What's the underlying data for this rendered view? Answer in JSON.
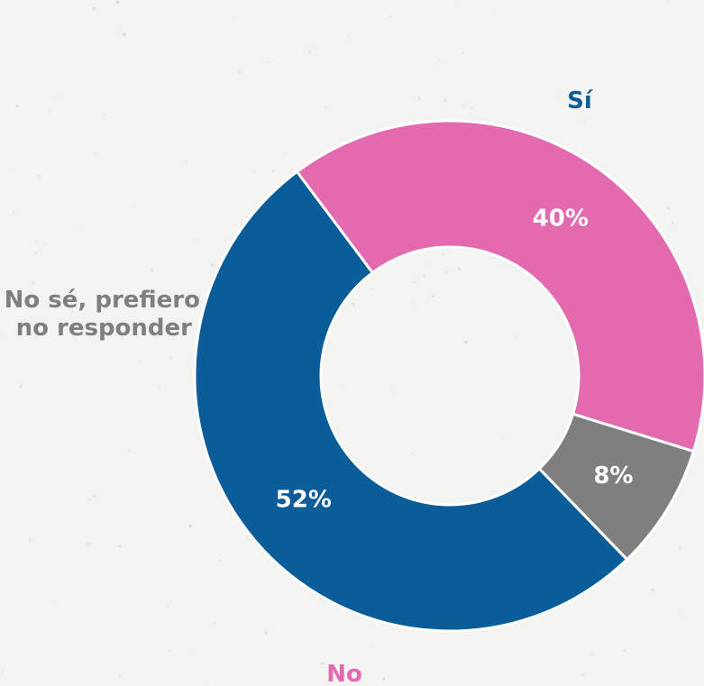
{
  "chart_data": {
    "type": "pie",
    "donut": true,
    "legend": "none",
    "slices": [
      {
        "label": "Sí",
        "value": 52,
        "display": "52%",
        "color": "#0a5d98"
      },
      {
        "label": "No",
        "value": 40,
        "display": "40%",
        "color": "#e36aae"
      },
      {
        "label_lines": [
          "No sé, prefiero",
          "no responder"
        ],
        "value": 8,
        "display": "8%",
        "color": "#7f7f7f"
      }
    ]
  }
}
